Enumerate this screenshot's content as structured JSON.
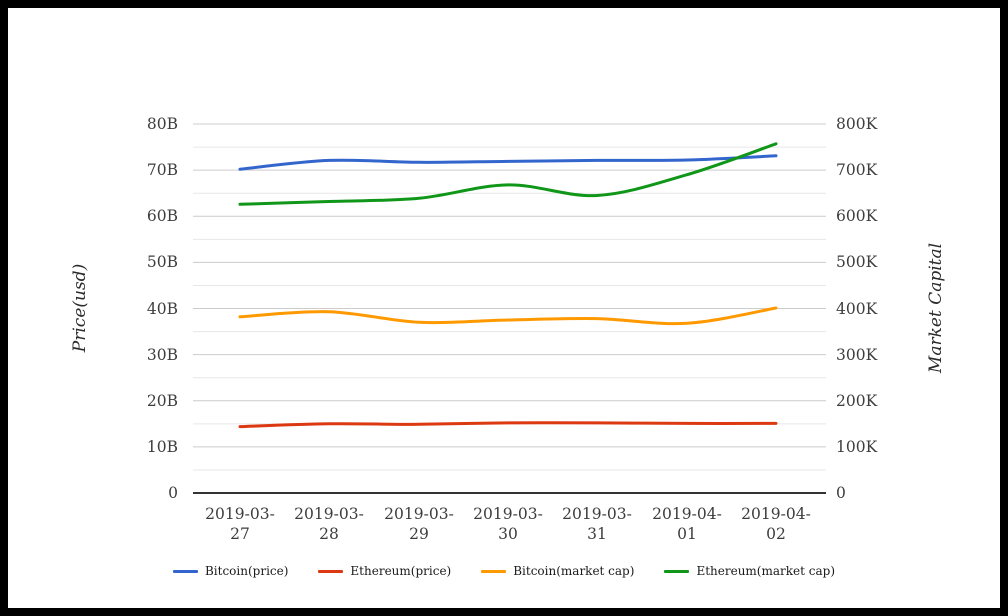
{
  "frame": {
    "border_color": "#000000",
    "background_color": "#ffffff"
  },
  "chart_data": {
    "type": "line",
    "title": "",
    "categories": [
      "2019-03-27",
      "2019-03-28",
      "2019-03-29",
      "2019-03-30",
      "2019-03-31",
      "2019-04-01",
      "2019-04-02"
    ],
    "left_axis": {
      "label": "Price(usd)",
      "tick_labels": [
        "0",
        "10B",
        "20B",
        "30B",
        "40B",
        "50B",
        "60B",
        "70B",
        "80B"
      ],
      "range": [
        0,
        80
      ],
      "major_step": 10,
      "minor_step": 5
    },
    "right_axis": {
      "label": "Market Capital",
      "tick_labels": [
        "0",
        "100K",
        "200K",
        "300K",
        "400K",
        "500K",
        "600K",
        "700K",
        "800K"
      ],
      "range": [
        0,
        800
      ],
      "major_step": 100,
      "minor_step": 50
    },
    "grid": {
      "horizontal": true,
      "vertical": false,
      "minor_gridlines": true
    },
    "legend_position": "bottom",
    "series": [
      {
        "name": "Bitcoin(price)",
        "color": "#3366cc",
        "axis": "left",
        "values": [
          70.2,
          72.1,
          71.7,
          71.9,
          72.1,
          72.2,
          73.1
        ]
      },
      {
        "name": "Ethereum(price)",
        "color": "#dc3912",
        "axis": "left",
        "values": [
          14.4,
          15.0,
          14.9,
          15.2,
          15.2,
          15.1,
          15.1
        ]
      },
      {
        "name": "Bitcoin(market cap)",
        "color": "#ff9900",
        "axis": "right",
        "values": [
          382,
          393,
          370,
          375,
          378,
          368,
          401
        ]
      },
      {
        "name": "Ethereum(market cap)",
        "color": "#109618",
        "axis": "right",
        "values": [
          626,
          632,
          639,
          668,
          645,
          690,
          757
        ]
      }
    ],
    "colors": {
      "major_gridline": "#cccccc",
      "minor_gridline": "#e7e7e7",
      "zero_line": "#333333",
      "tick_text": "#3d3d3d"
    }
  }
}
